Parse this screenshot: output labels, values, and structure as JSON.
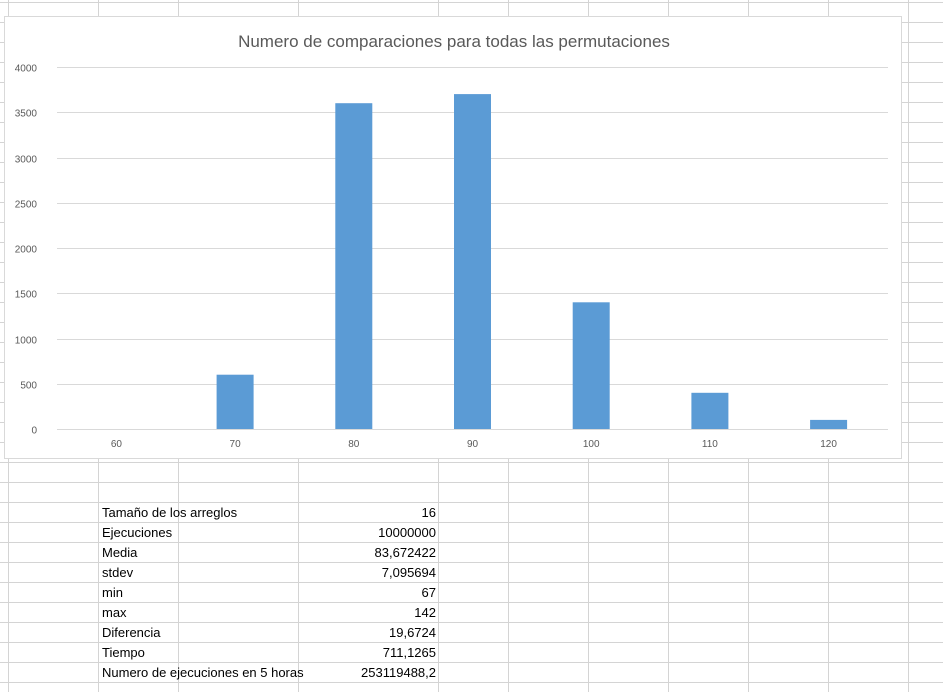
{
  "colors": {
    "bar": "#5b9bd5",
    "gridline": "#d9d9d9",
    "cell_border": "#d4d4d4",
    "text": "#595959"
  },
  "chart_data": {
    "type": "bar",
    "title": "Numero de comparaciones para todas las permutaciones",
    "categories": [
      "60",
      "70",
      "80",
      "90",
      "100",
      "110",
      "120"
    ],
    "values": [
      0,
      600,
      3600,
      3700,
      1400,
      400,
      100
    ],
    "ylim": [
      0,
      4000
    ],
    "yticks": [
      0,
      500,
      1000,
      1500,
      2000,
      2500,
      3000,
      3500,
      4000
    ],
    "xlabel": "",
    "ylabel": "",
    "grid": true,
    "legend": "none"
  },
  "table": {
    "rows": [
      {
        "label": "Tamaño de los arreglos",
        "value": "16"
      },
      {
        "label": "Ejecuciones",
        "value": "10000000"
      },
      {
        "label": "Media",
        "value": "83,672422"
      },
      {
        "label": "stdev",
        "value": "7,095694"
      },
      {
        "label": "min",
        "value": "67"
      },
      {
        "label": "max",
        "value": "142"
      },
      {
        "label": "Diferencia",
        "value": "19,6724"
      },
      {
        "label": "Tiempo",
        "value": "711,1265"
      },
      {
        "label": "Numero de ejecuciones en 5 horas",
        "value": "253119488,2"
      }
    ]
  }
}
